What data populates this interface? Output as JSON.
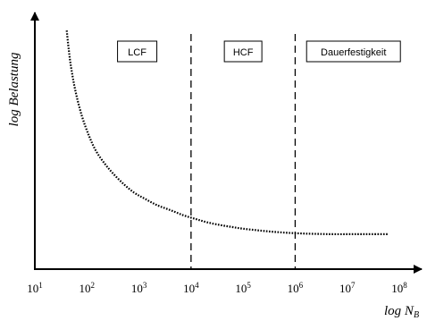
{
  "chart_data": {
    "type": "line",
    "title": "",
    "xlabel": "log N",
    "xlabel_sub": "B",
    "ylabel": "log Belastung",
    "x_scale": "log",
    "xlim": [
      10,
      100000000
    ],
    "x_ticks": [
      {
        "value": 10,
        "base": "10",
        "exp": "1"
      },
      {
        "value": 100,
        "base": "10",
        "exp": "2"
      },
      {
        "value": 1000,
        "base": "10",
        "exp": "3"
      },
      {
        "value": 10000,
        "base": "10",
        "exp": "4"
      },
      {
        "value": 100000,
        "base": "10",
        "exp": "5"
      },
      {
        "value": 1000000,
        "base": "10",
        "exp": "6"
      },
      {
        "value": 10000000,
        "base": "10",
        "exp": "7"
      },
      {
        "value": 100000000,
        "base": "10",
        "exp": "8"
      }
    ],
    "y_tick_labels": false,
    "grid": false,
    "series": [
      {
        "style": "dotted",
        "color": "#000000",
        "x": [
          41,
          45,
          50,
          60,
          80,
          110,
          150,
          220,
          320,
          500,
          800,
          1300,
          2200,
          4000,
          7000,
          12000,
          20000,
          35000,
          60000,
          100000,
          180000,
          320000,
          560000,
          1000000,
          1800000,
          3200000,
          5600000,
          10000000,
          17000000,
          30000000,
          60000000
        ],
        "y": [
          0.95,
          0.87,
          0.8,
          0.71,
          0.61,
          0.53,
          0.47,
          0.42,
          0.38,
          0.34,
          0.305,
          0.28,
          0.255,
          0.235,
          0.215,
          0.2,
          0.187,
          0.176,
          0.168,
          0.161,
          0.155,
          0.15,
          0.146,
          0.143,
          0.141,
          0.14,
          0.139,
          0.139,
          0.139,
          0.139,
          0.139
        ]
      }
    ],
    "boundaries": [
      {
        "x": 10000,
        "style": "dashed"
      },
      {
        "x": 1000000,
        "style": "dashed"
      }
    ],
    "regions": [
      {
        "label": "LCF",
        "x_center": 1000
      },
      {
        "label": "HCF",
        "x_center": 100000
      },
      {
        "label": "Dauerfestigkeit",
        "x_center": 10000000
      }
    ]
  }
}
